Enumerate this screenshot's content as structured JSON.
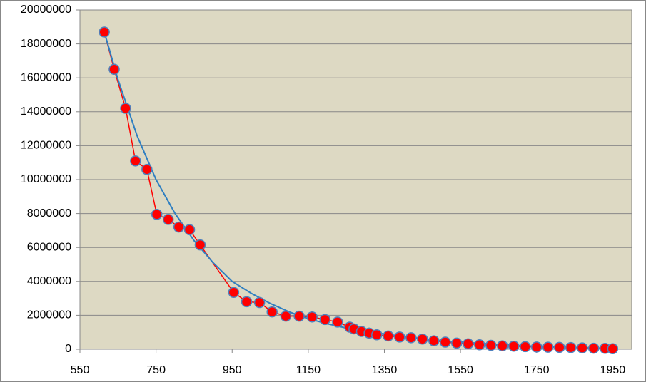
{
  "chart_data": {
    "type": "scatter",
    "xlim": [
      550,
      2000
    ],
    "ylim": [
      0,
      20000000
    ],
    "xticks": [
      550,
      750,
      950,
      1150,
      1350,
      1550,
      1750,
      1950
    ],
    "yticks": [
      0,
      2000000,
      4000000,
      6000000,
      8000000,
      10000000,
      12000000,
      14000000,
      16000000,
      18000000,
      20000000
    ],
    "grid": true,
    "background": "#ddd9c3",
    "series": [
      {
        "color": "#ff0000",
        "edge_color": "#4f81bd",
        "markers": true,
        "x": [
          614,
          640,
          670,
          696,
          726,
          752,
          782,
          810,
          838,
          866,
          954,
          988,
          1022,
          1055,
          1091,
          1126,
          1160,
          1194,
          1227,
          1259,
          1270,
          1290,
          1310,
          1330,
          1360,
          1390,
          1420,
          1450,
          1480,
          1510,
          1540,
          1570,
          1600,
          1630,
          1660,
          1690,
          1720,
          1750,
          1780,
          1810,
          1840,
          1870,
          1900,
          1930,
          1950
        ],
        "values": [
          18700000,
          16500000,
          14200000,
          11100000,
          10600000,
          7950000,
          7650000,
          7200000,
          7050000,
          6150000,
          3350000,
          2800000,
          2750000,
          2200000,
          1950000,
          1950000,
          1900000,
          1750000,
          1600000,
          1300000,
          1200000,
          1050000,
          950000,
          850000,
          780000,
          720000,
          680000,
          600000,
          500000,
          420000,
          360000,
          320000,
          260000,
          230000,
          200000,
          180000,
          150000,
          130000,
          120000,
          110000,
          100000,
          80000,
          60000,
          50000,
          30000
        ]
      },
      {
        "color": "#2f7fc1",
        "markers": false,
        "x": [
          614,
          650,
          700,
          750,
          800,
          850,
          900,
          950,
          1000,
          1050,
          1100,
          1150,
          1200,
          1250,
          1300,
          1400,
          1500,
          1600,
          1700,
          1800,
          1950
        ],
        "values": [
          18700000,
          15900000,
          12600000,
          10000000,
          8000000,
          6400000,
          5100000,
          4000000,
          3300000,
          2700000,
          2200000,
          1800000,
          1500000,
          1250000,
          1050000,
          750000,
          500000,
          350000,
          220000,
          130000,
          50000
        ]
      }
    ]
  }
}
